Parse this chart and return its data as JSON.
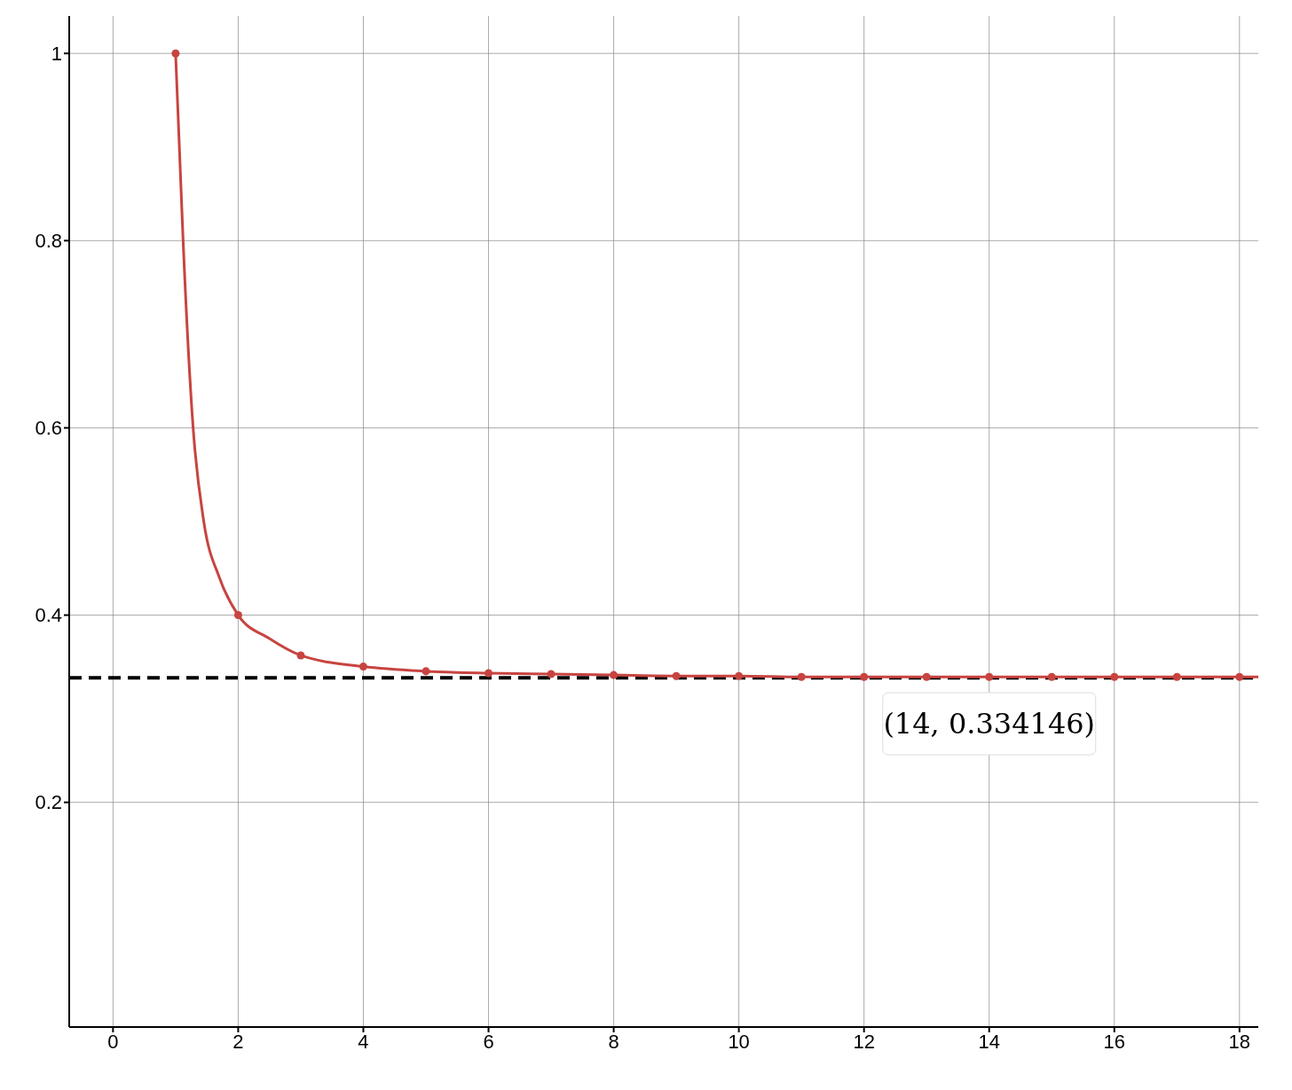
{
  "chart_data": {
    "type": "line",
    "xlim": [
      -0.7,
      18.3
    ],
    "ylim": [
      -0.04,
      1.04
    ],
    "xticks": [
      0,
      2,
      4,
      6,
      8,
      10,
      12,
      14,
      16,
      18
    ],
    "yticks": [
      0.2,
      0.4,
      0.6,
      0.8,
      1
    ],
    "grid": true,
    "series": [
      {
        "type": "line",
        "color": "#c74440",
        "marker": "none",
        "x": [
          1,
          1.06,
          1.12,
          1.28,
          1.45,
          1.7,
          2,
          2.5,
          3,
          4,
          5,
          6,
          7,
          8,
          9,
          10,
          11,
          12,
          13,
          14,
          15,
          16,
          17,
          18,
          18.3
        ],
        "values": [
          1,
          0.9,
          0.8,
          0.6,
          0.5,
          0.44,
          0.4,
          0.375,
          0.357,
          0.345,
          0.34,
          0.338,
          0.337,
          0.336,
          0.335,
          0.335,
          0.334,
          0.334,
          0.334,
          0.334,
          0.334,
          0.334,
          0.334,
          0.334,
          0.334
        ]
      },
      {
        "type": "scatter",
        "color": "#c74440",
        "marker": "circle",
        "x": [
          1,
          2,
          3,
          4,
          5,
          6,
          7,
          8,
          9,
          10,
          11,
          12,
          13,
          14,
          15,
          16,
          17,
          18
        ],
        "values": [
          1,
          0.4,
          0.357,
          0.345,
          0.34,
          0.338,
          0.337,
          0.336,
          0.335,
          0.335,
          0.334,
          0.334,
          0.334,
          0.334,
          0.334,
          0.334,
          0.334,
          0.334
        ]
      }
    ],
    "ref_lines": [
      {
        "axis": "y",
        "value": 0.333,
        "color": "#000000",
        "line_style": "dashed"
      }
    ],
    "annotations": [
      {
        "text": "(14, 0.334146)",
        "x": 14,
        "y": 0.334146
      }
    ]
  }
}
